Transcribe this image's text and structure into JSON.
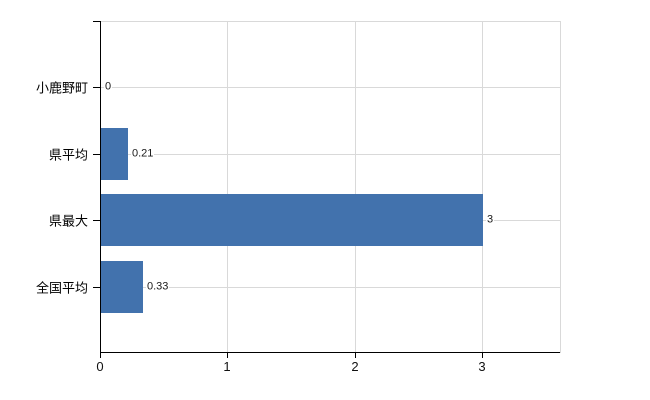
{
  "chart_data": {
    "type": "bar",
    "orientation": "horizontal",
    "title": "",
    "xlabel": "",
    "ylabel": "",
    "categories": [
      "小鹿野町",
      "県平均",
      "県最大",
      "全国平均"
    ],
    "values": [
      0,
      0.21,
      3,
      0.33
    ],
    "value_labels": [
      "0",
      "0.21",
      "3",
      "0.33"
    ],
    "x_ticks": [
      "0",
      "1",
      "2",
      "3"
    ],
    "x_tick_values": [
      0,
      1,
      2,
      3
    ],
    "xlim": [
      0,
      3.61
    ],
    "grid": "on",
    "legend": "none",
    "colors": {
      "bar": "#4272ad",
      "grid": "#d9d9d9",
      "axis": "#000000",
      "text": "#000000"
    }
  }
}
